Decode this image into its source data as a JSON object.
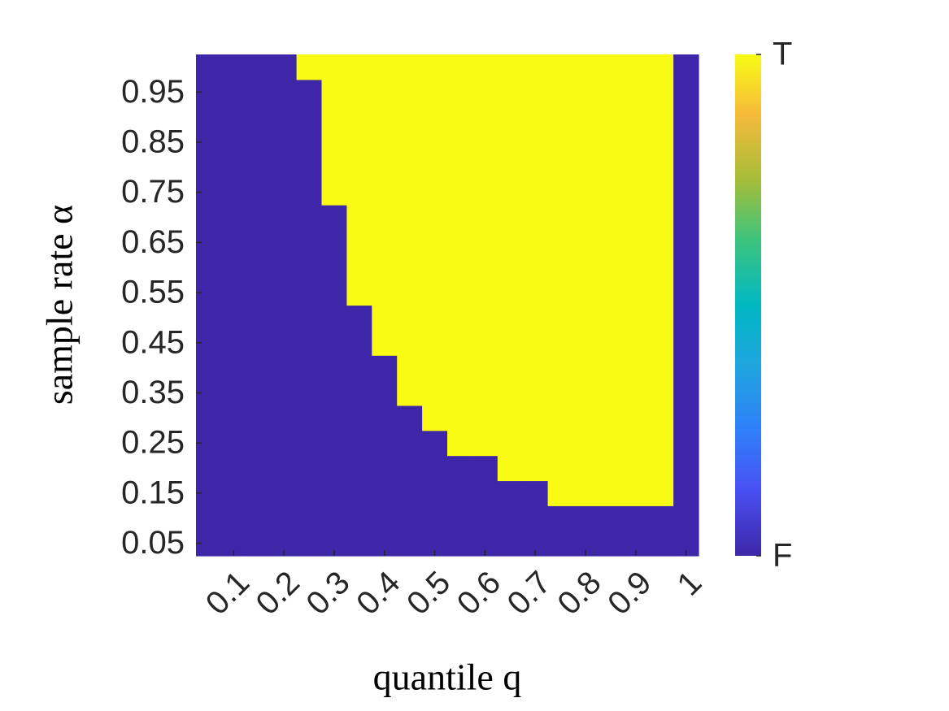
{
  "chart_data": {
    "type": "heatmap",
    "x_label": "quantile q",
    "y_label": "sample rate α",
    "x": [
      0.05,
      0.1,
      0.15,
      0.2,
      0.25,
      0.3,
      0.35,
      0.4,
      0.45,
      0.5,
      0.55,
      0.6,
      0.65,
      0.7,
      0.75,
      0.8,
      0.85,
      0.9,
      0.95,
      1
    ],
    "y": [
      0.05,
      0.1,
      0.15,
      0.2,
      0.25,
      0.3,
      0.35,
      0.4,
      0.45,
      0.5,
      0.55,
      0.6,
      0.65,
      0.7,
      0.75,
      0.8,
      0.85,
      0.9,
      0.95,
      1
    ],
    "z": [
      [
        0,
        0,
        0,
        0,
        0,
        0,
        0,
        0,
        0,
        0,
        0,
        0,
        0,
        0,
        0,
        0,
        0,
        0,
        0,
        0
      ],
      [
        0,
        0,
        0,
        0,
        0,
        0,
        0,
        0,
        0,
        0,
        0,
        0,
        0,
        0,
        0,
        0,
        0,
        0,
        0,
        0
      ],
      [
        0,
        0,
        0,
        0,
        0,
        0,
        0,
        0,
        0,
        0,
        0,
        0,
        0,
        0,
        1,
        1,
        1,
        1,
        1,
        0
      ],
      [
        0,
        0,
        0,
        0,
        0,
        0,
        0,
        0,
        0,
        0,
        0,
        0,
        1,
        1,
        1,
        1,
        1,
        1,
        1,
        0
      ],
      [
        0,
        0,
        0,
        0,
        0,
        0,
        0,
        0,
        0,
        0,
        1,
        1,
        1,
        1,
        1,
        1,
        1,
        1,
        1,
        0
      ],
      [
        0,
        0,
        0,
        0,
        0,
        0,
        0,
        0,
        0,
        1,
        1,
        1,
        1,
        1,
        1,
        1,
        1,
        1,
        1,
        0
      ],
      [
        0,
        0,
        0,
        0,
        0,
        0,
        0,
        0,
        1,
        1,
        1,
        1,
        1,
        1,
        1,
        1,
        1,
        1,
        1,
        0
      ],
      [
        0,
        0,
        0,
        0,
        0,
        0,
        0,
        0,
        1,
        1,
        1,
        1,
        1,
        1,
        1,
        1,
        1,
        1,
        1,
        0
      ],
      [
        0,
        0,
        0,
        0,
        0,
        0,
        0,
        1,
        1,
        1,
        1,
        1,
        1,
        1,
        1,
        1,
        1,
        1,
        1,
        0
      ],
      [
        0,
        0,
        0,
        0,
        0,
        0,
        0,
        1,
        1,
        1,
        1,
        1,
        1,
        1,
        1,
        1,
        1,
        1,
        1,
        0
      ],
      [
        0,
        0,
        0,
        0,
        0,
        0,
        1,
        1,
        1,
        1,
        1,
        1,
        1,
        1,
        1,
        1,
        1,
        1,
        1,
        0
      ],
      [
        0,
        0,
        0,
        0,
        0,
        0,
        1,
        1,
        1,
        1,
        1,
        1,
        1,
        1,
        1,
        1,
        1,
        1,
        1,
        0
      ],
      [
        0,
        0,
        0,
        0,
        0,
        0,
        1,
        1,
        1,
        1,
        1,
        1,
        1,
        1,
        1,
        1,
        1,
        1,
        1,
        0
      ],
      [
        0,
        0,
        0,
        0,
        0,
        0,
        1,
        1,
        1,
        1,
        1,
        1,
        1,
        1,
        1,
        1,
        1,
        1,
        1,
        0
      ],
      [
        0,
        0,
        0,
        0,
        0,
        1,
        1,
        1,
        1,
        1,
        1,
        1,
        1,
        1,
        1,
        1,
        1,
        1,
        1,
        0
      ],
      [
        0,
        0,
        0,
        0,
        0,
        1,
        1,
        1,
        1,
        1,
        1,
        1,
        1,
        1,
        1,
        1,
        1,
        1,
        1,
        0
      ],
      [
        0,
        0,
        0,
        0,
        0,
        1,
        1,
        1,
        1,
        1,
        1,
        1,
        1,
        1,
        1,
        1,
        1,
        1,
        1,
        0
      ],
      [
        0,
        0,
        0,
        0,
        0,
        1,
        1,
        1,
        1,
        1,
        1,
        1,
        1,
        1,
        1,
        1,
        1,
        1,
        1,
        0
      ],
      [
        0,
        0,
        0,
        0,
        0,
        1,
        1,
        1,
        1,
        1,
        1,
        1,
        1,
        1,
        1,
        1,
        1,
        1,
        1,
        0
      ],
      [
        0,
        0,
        0,
        0,
        1,
        1,
        1,
        1,
        1,
        1,
        1,
        1,
        1,
        1,
        1,
        1,
        1,
        1,
        1,
        0
      ]
    ],
    "xlim": [
      0.025,
      1.025
    ],
    "ylim": [
      0.025,
      1.025
    ],
    "xticks": [
      0.1,
      0.2,
      0.3,
      0.4,
      0.5,
      0.6,
      0.7,
      0.8,
      0.9,
      1
    ],
    "yticks": [
      0.05,
      0.15,
      0.25,
      0.35,
      0.45,
      0.55,
      0.65,
      0.75,
      0.85,
      0.95
    ],
    "colormap": "parula",
    "clim": [
      0,
      1
    ],
    "cticks": [
      {
        "value": 0,
        "label": "F"
      },
      {
        "value": 1,
        "label": "T"
      }
    ]
  }
}
